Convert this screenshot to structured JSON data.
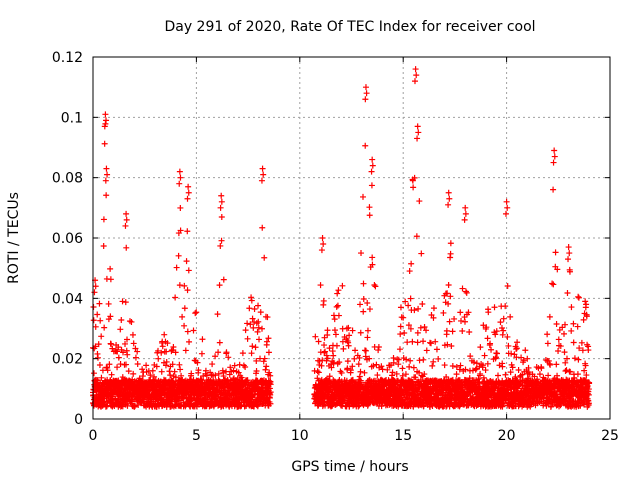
{
  "chart_data": {
    "type": "scatter",
    "title": "Day 291 of 2020, Rate Of TEC Index for receiver cool",
    "xlabel": "GPS time / hours",
    "ylabel": "ROTI / TECUs",
    "xlim": [
      0,
      25
    ],
    "ylim": [
      0,
      0.12
    ],
    "x_ticks": [
      0,
      5,
      10,
      15,
      20,
      25
    ],
    "x_tick_labels": [
      "0",
      "5",
      "10",
      "15",
      "20",
      "25"
    ],
    "y_ticks": [
      0,
      0.02,
      0.04,
      0.06,
      0.08,
      0.1,
      0.12
    ],
    "y_tick_labels": [
      "0",
      "0.02",
      "0.04",
      "0.06",
      "0.08",
      "0.1",
      "0.12"
    ],
    "grid": true,
    "marker": "+",
    "series": [
      {
        "name": "ROTI",
        "color": "#ff0000",
        "data_gap_hours": [
          8.6,
          10.7
        ],
        "peaks": [
          {
            "x": 0.1,
            "y": 0.046
          },
          {
            "x": 0.6,
            "y": 0.101
          },
          {
            "x": 0.65,
            "y": 0.083
          },
          {
            "x": 1.6,
            "y": 0.068
          },
          {
            "x": 4.2,
            "y": 0.082
          },
          {
            "x": 4.6,
            "y": 0.077
          },
          {
            "x": 6.2,
            "y": 0.074
          },
          {
            "x": 8.2,
            "y": 0.083
          },
          {
            "x": 11.1,
            "y": 0.06
          },
          {
            "x": 13.2,
            "y": 0.11
          },
          {
            "x": 13.5,
            "y": 0.086
          },
          {
            "x": 15.6,
            "y": 0.116
          },
          {
            "x": 15.7,
            "y": 0.097
          },
          {
            "x": 17.2,
            "y": 0.075
          },
          {
            "x": 18.0,
            "y": 0.07
          },
          {
            "x": 20.0,
            "y": 0.072
          },
          {
            "x": 22.3,
            "y": 0.089
          },
          {
            "x": 23.0,
            "y": 0.057
          },
          {
            "x": 23.8,
            "y": 0.039
          }
        ]
      }
    ]
  }
}
